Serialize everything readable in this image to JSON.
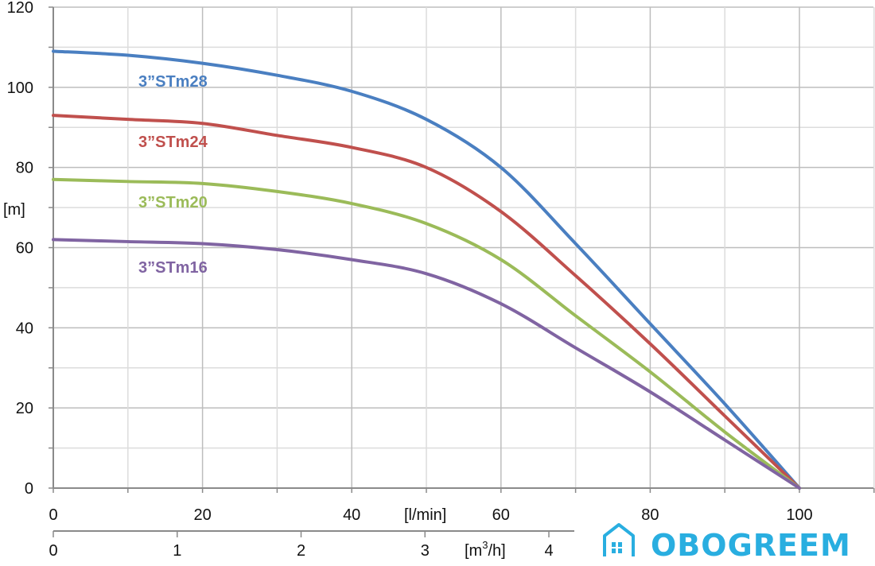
{
  "chart_data": {
    "type": "line",
    "title": "",
    "xlabel": "[l/min]",
    "x2label_main": "[m",
    "x2label_sup": "3",
    "x2label_end": "/h]",
    "ylabel": "[m]",
    "xlim": [
      0,
      110
    ],
    "ylim": [
      0,
      120
    ],
    "x_ticks": [
      "0",
      "20",
      "40",
      "60",
      "80",
      "100"
    ],
    "x_tick_values": [
      0,
      20,
      40,
      60,
      80,
      100
    ],
    "x2_ticks": [
      "0",
      "1",
      "2",
      "3",
      "4"
    ],
    "x2_tick_values": [
      0,
      1,
      2,
      3,
      4
    ],
    "y_ticks": [
      "0",
      "20",
      "40",
      "60",
      "80",
      "100",
      "120"
    ],
    "y_tick_values": [
      0,
      20,
      40,
      60,
      80,
      100,
      120
    ],
    "grid": true,
    "series": [
      {
        "name": "3”STm28",
        "color": "#4a7fc1",
        "x": [
          0,
          10,
          20,
          30,
          40,
          50,
          60,
          70,
          80,
          90,
          100
        ],
        "y": [
          109,
          108,
          106,
          103,
          99,
          92,
          80,
          61,
          41,
          21,
          0
        ]
      },
      {
        "name": "3”STm24",
        "color": "#c0504d",
        "x": [
          0,
          10,
          20,
          30,
          40,
          50,
          60,
          70,
          80,
          90,
          100
        ],
        "y": [
          93,
          92,
          91,
          88,
          85,
          80,
          69,
          53,
          36,
          18,
          0
        ]
      },
      {
        "name": "3”STm20",
        "color": "#9bbb59",
        "x": [
          0,
          10,
          20,
          30,
          40,
          50,
          60,
          70,
          80,
          90,
          100
        ],
        "y": [
          77,
          76.5,
          76,
          74,
          71,
          66,
          57,
          43,
          29,
          14,
          0
        ]
      },
      {
        "name": "3”STm16",
        "color": "#8064a2",
        "x": [
          0,
          10,
          20,
          30,
          40,
          50,
          60,
          70,
          80,
          90,
          100
        ],
        "y": [
          62,
          61.5,
          61,
          59.5,
          57,
          53.5,
          46,
          35,
          24,
          12,
          0
        ]
      }
    ]
  },
  "logo": {
    "text": "OBOGREEM",
    "icon": "house-icon",
    "color": "#29aee0"
  }
}
